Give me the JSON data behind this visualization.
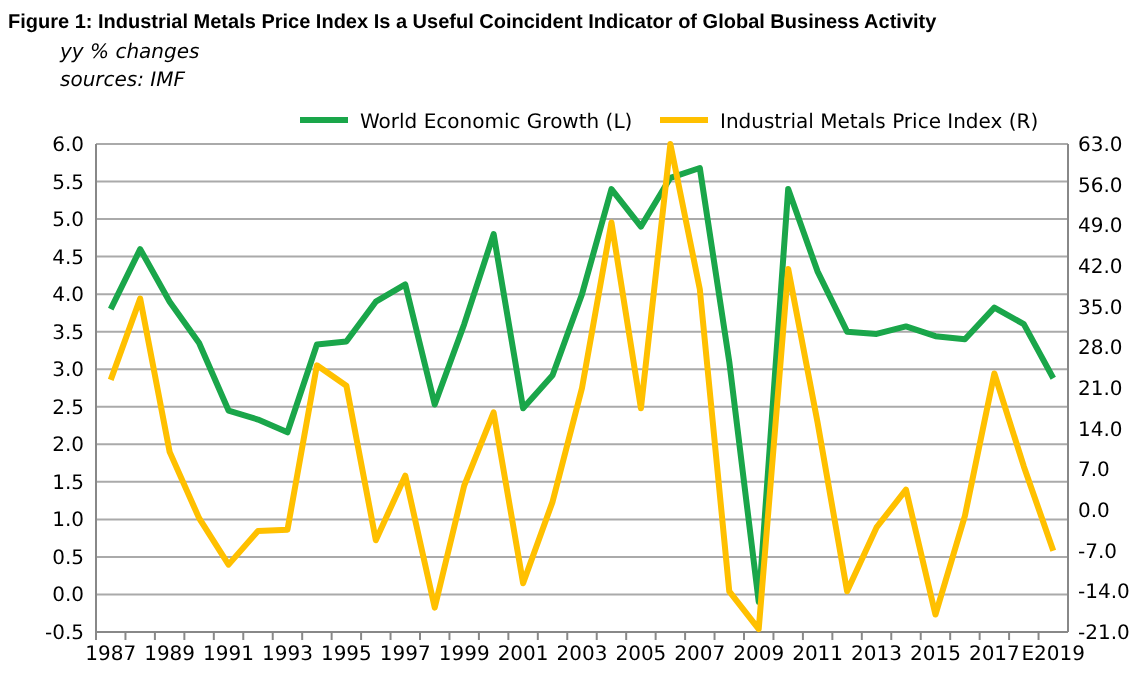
{
  "chart_data": {
    "type": "line",
    "title": "Figure 1: Industrial Metals Price Index Is a Useful Coincident Indicator of Global Business Activity",
    "subtitle": "yy % changes",
    "annotations": [
      "sources: IMF"
    ],
    "categories": [
      "1987",
      null,
      "1989",
      null,
      "1991",
      null,
      "1993",
      null,
      "1995",
      null,
      "1997",
      null,
      "1999",
      null,
      "2001",
      null,
      "2003",
      null,
      "2005",
      null,
      "2007",
      null,
      "2009",
      null,
      "2011",
      null,
      "2013",
      null,
      "2015",
      null,
      "2017",
      null,
      "E2019"
    ],
    "series": [
      {
        "name": "World Economic Growth (L)",
        "color": "#1aa64a",
        "values": [
          3.8,
          4.6,
          3.9,
          3.35,
          2.45,
          2.33,
          2.16,
          3.33,
          3.37,
          3.9,
          4.13,
          2.53,
          3.6,
          4.8,
          2.48,
          2.92,
          4.0,
          5.4,
          4.9,
          5.55,
          5.68,
          3.1,
          -0.1,
          5.4,
          4.3,
          3.5,
          3.47,
          3.57,
          3.44,
          3.4,
          3.82,
          3.6,
          2.88
        ]
      },
      {
        "name": "Industrial Metals Price Index (R)",
        "color": "#ffc000",
        "axis": "y2",
        "values": [
          22.4,
          36.4,
          10,
          -1.4,
          -9.4,
          -3.6,
          -3.4,
          24.9,
          21.4,
          -5.2,
          5.9,
          -16.8,
          4.2,
          16.8,
          -12.6,
          1.4,
          21,
          49.5,
          17.5,
          63,
          38,
          -14,
          -20.5,
          41.5,
          15,
          -14,
          -3,
          3.5,
          -18,
          -1,
          23.5,
          7.5,
          -7
        ]
      }
    ],
    "ylim": [
      -0.5,
      6
    ],
    "yticks": [
      {
        "value": -0.5,
        "label": "-0.5"
      },
      {
        "value": 0,
        "label": "0.0"
      },
      {
        "value": 0.5,
        "label": "0.5"
      },
      {
        "value": 1,
        "label": "1.0"
      },
      {
        "value": 1.5,
        "label": "1.5"
      },
      {
        "value": 2,
        "label": "2.0"
      },
      {
        "value": 2.5,
        "label": "2.5"
      },
      {
        "value": 3,
        "label": "3.0"
      },
      {
        "value": 3.5,
        "label": "3.5"
      },
      {
        "value": 4,
        "label": "4.0"
      },
      {
        "value": 4.5,
        "label": "4.5"
      },
      {
        "value": 5,
        "label": "5.0"
      },
      {
        "value": 5.5,
        "label": "5.5"
      },
      {
        "value": 6,
        "label": "6.0"
      }
    ],
    "y2lim": [
      -21,
      63
    ],
    "y2ticks": [
      {
        "value": -21,
        "label": "-21.0"
      },
      {
        "value": -14,
        "label": "-14.0"
      },
      {
        "value": -7,
        "label": "-7.0"
      },
      {
        "value": 0,
        "label": "0.0"
      },
      {
        "value": 7,
        "label": "7.0"
      },
      {
        "value": 14,
        "label": "14.0"
      },
      {
        "value": 21,
        "label": "21.0"
      },
      {
        "value": 28,
        "label": "28.0"
      },
      {
        "value": 35,
        "label": "35.0"
      },
      {
        "value": 42,
        "label": "42.0"
      },
      {
        "value": 49,
        "label": "49.0"
      },
      {
        "value": 56,
        "label": "56.0"
      },
      {
        "value": 63,
        "label": "63.0"
      }
    ],
    "grid": "y",
    "legend": "top",
    "marker": "none",
    "line_style": "solid"
  }
}
